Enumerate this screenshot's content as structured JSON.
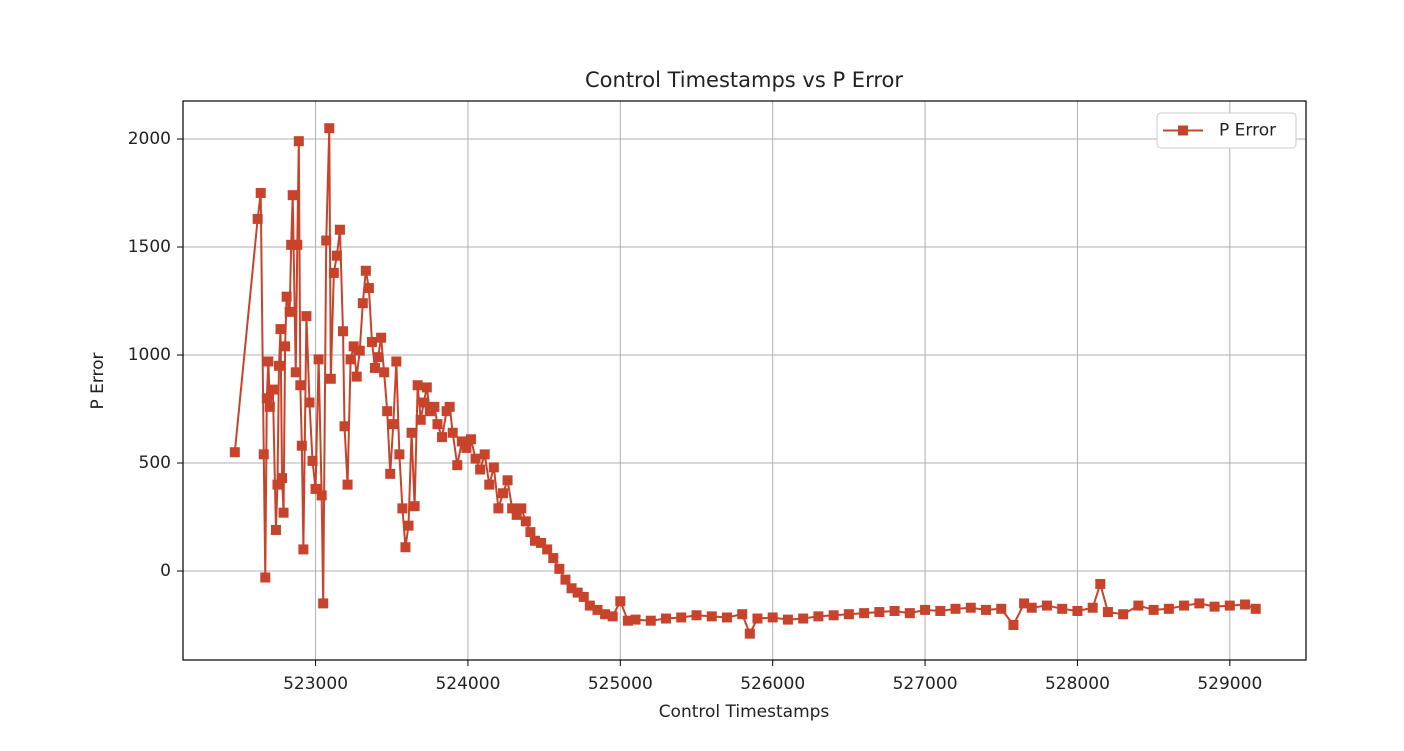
{
  "chart_data": {
    "type": "line",
    "title": "Control Timestamps vs P Error",
    "xlabel": "Control Timestamps",
    "ylabel": "P Error",
    "x": [
      522470,
      522620,
      522640,
      522660,
      522670,
      522680,
      522690,
      522700,
      522720,
      522740,
      522750,
      522760,
      522770,
      522780,
      522790,
      522800,
      522810,
      522830,
      522840,
      522850,
      522870,
      522880,
      522890,
      522900,
      522910,
      522920,
      522940,
      522960,
      522980,
      523000,
      523020,
      523040,
      523050,
      523070,
      523090,
      523100,
      523120,
      523140,
      523160,
      523180,
      523190,
      523210,
      523230,
      523250,
      523270,
      523290,
      523310,
      523330,
      523350,
      523370,
      523390,
      523410,
      523430,
      523450,
      523470,
      523490,
      523510,
      523530,
      523550,
      523570,
      523590,
      523610,
      523630,
      523650,
      523670,
      523690,
      523710,
      523730,
      523750,
      523780,
      523800,
      523830,
      523860,
      523880,
      523900,
      523930,
      523960,
      523990,
      524020,
      524050,
      524080,
      524110,
      524140,
      524170,
      524200,
      524230,
      524260,
      524290,
      524320,
      524350,
      524380,
      524410,
      524440,
      524480,
      524520,
      524560,
      524600,
      524640,
      524680,
      524720,
      524760,
      524800,
      524850,
      524900,
      524950,
      525000,
      525050,
      525100,
      525200,
      525300,
      525400,
      525500,
      525600,
      525700,
      525800,
      525850,
      525900,
      526000,
      526100,
      526200,
      526300,
      526400,
      526500,
      526600,
      526700,
      526800,
      526900,
      527000,
      527100,
      527200,
      527300,
      527400,
      527500,
      527580,
      527650,
      527700,
      527800,
      527900,
      528000,
      528100,
      528150,
      528200,
      528300,
      528400,
      528500,
      528600,
      528700,
      528800,
      528900,
      529000,
      529100,
      529170
    ],
    "series": [
      {
        "name": "P Error",
        "color": "#c8432b",
        "values": [
          550,
          1630,
          1750,
          540,
          -30,
          800,
          970,
          760,
          840,
          190,
          400,
          950,
          1120,
          430,
          270,
          1040,
          1270,
          1200,
          1510,
          1740,
          920,
          1510,
          1990,
          860,
          580,
          100,
          1180,
          780,
          510,
          380,
          980,
          350,
          -150,
          1530,
          2050,
          890,
          1380,
          1460,
          1580,
          1110,
          670,
          400,
          980,
          1040,
          900,
          1020,
          1240,
          1390,
          1310,
          1060,
          940,
          990,
          1080,
          920,
          740,
          450,
          680,
          970,
          540,
          290,
          110,
          210,
          640,
          300,
          860,
          700,
          780,
          850,
          740,
          760,
          680,
          620,
          740,
          760,
          640,
          490,
          600,
          570,
          610,
          520,
          470,
          540,
          400,
          480,
          290,
          360,
          420,
          290,
          260,
          290,
          230,
          180,
          140,
          130,
          100,
          60,
          10,
          -40,
          -80,
          -100,
          -120,
          -160,
          -180,
          -200,
          -210,
          -140,
          -230,
          -225,
          -230,
          -220,
          -215,
          -205,
          -210,
          -215,
          -200,
          -290,
          -220,
          -215,
          -225,
          -220,
          -210,
          -205,
          -200,
          -195,
          -190,
          -185,
          -195,
          -180,
          -185,
          -175,
          -170,
          -180,
          -175,
          -250,
          -150,
          -170,
          -160,
          -175,
          -185,
          -170,
          -60,
          -190,
          -200,
          -160,
          -180,
          -175,
          -160,
          -150,
          -165,
          -160,
          -155,
          -175
        ]
      }
    ],
    "xlim": [
      522130,
      529500
    ],
    "ylim": [
      -412,
      2176
    ],
    "xticks": [
      523000,
      524000,
      525000,
      526000,
      527000,
      528000,
      529000
    ],
    "yticks": [
      0,
      500,
      1000,
      1500,
      2000
    ],
    "grid": true,
    "legend": "upper right"
  }
}
